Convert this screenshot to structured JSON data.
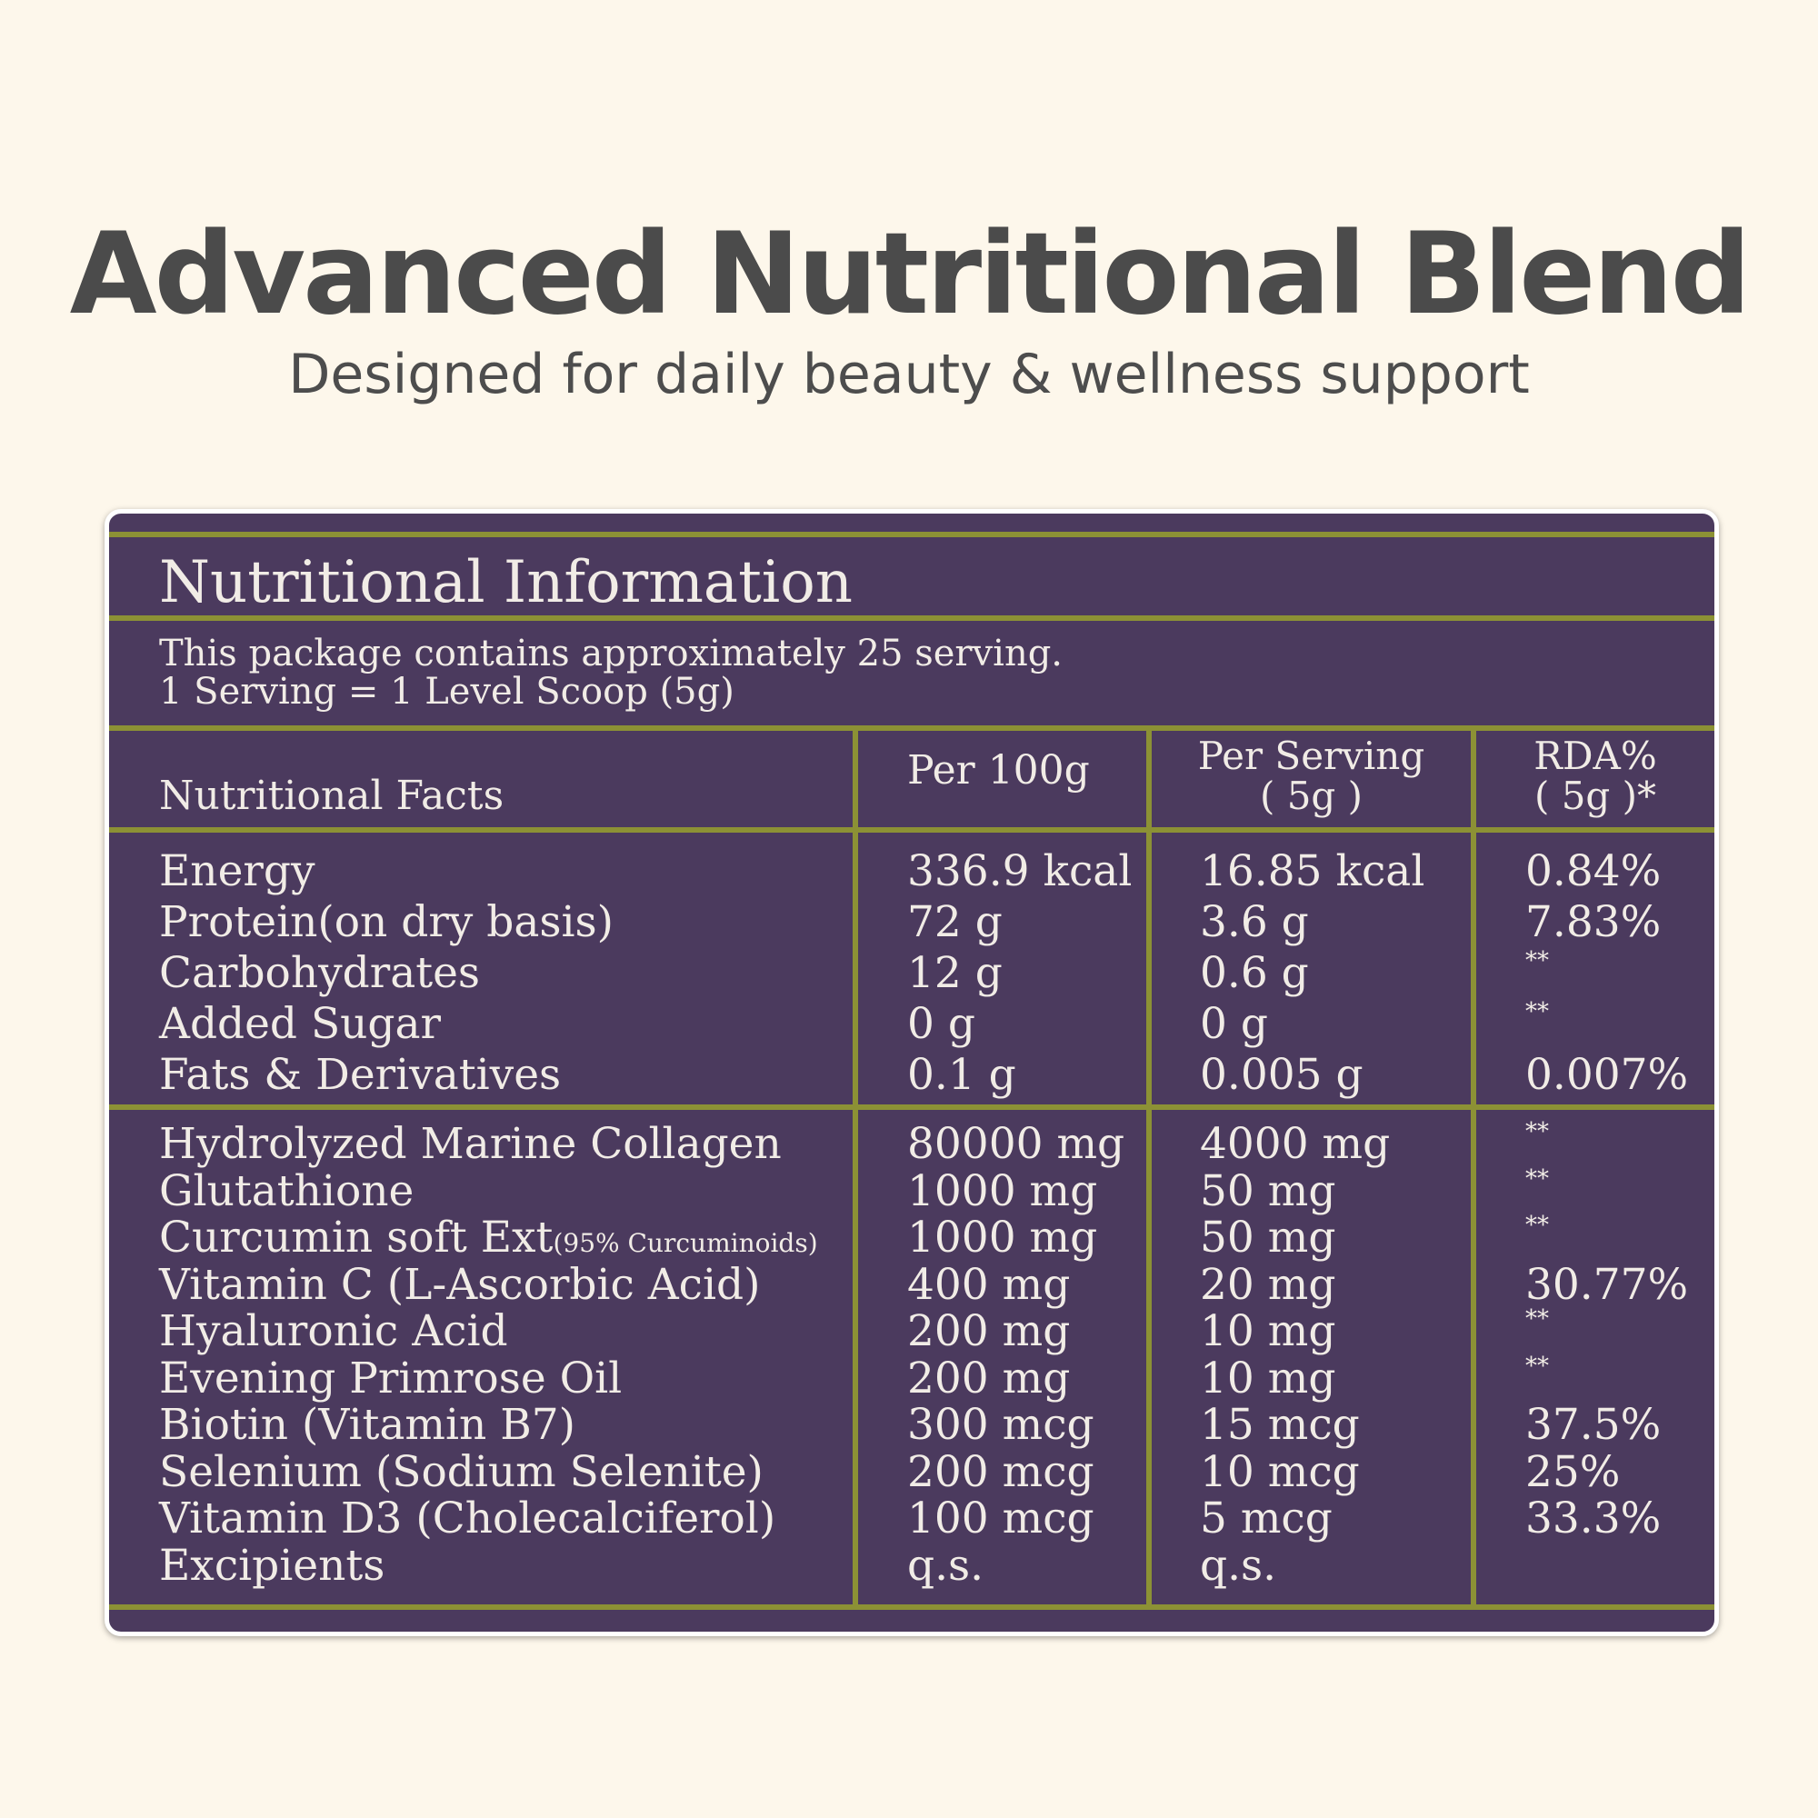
{
  "header": {
    "title": "Advanced Nutritional Blend",
    "subtitle": "Designed for daily beauty & wellness support"
  },
  "panel": {
    "title": "Nutritional Information",
    "line1": "This package contains approximately 25 serving.",
    "line2": "1 Serving = 1 Level Scoop (5g)",
    "columns": {
      "facts": "Nutritional Facts",
      "per100": "Per 100g",
      "serving_line1": "Per Serving",
      "serving_line2": "( 5g )",
      "rda_line1": "RDA%",
      "rda_line2": "( 5g )*"
    },
    "group1": [
      {
        "name": "Energy",
        "per100": "336.9 kcal",
        "serving": "16.85 kcal",
        "rda": "0.84%"
      },
      {
        "name": "Protein(on dry basis)",
        "per100": "72 g",
        "serving": "3.6 g",
        "rda": "7.83%"
      },
      {
        "name": "Carbohydrates",
        "per100": "12 g",
        "serving": "0.6 g",
        "rda": "**"
      },
      {
        "name": "Added Sugar",
        "per100": "0 g",
        "serving": "0 g",
        "rda": "**"
      },
      {
        "name": "Fats & Derivatives",
        "per100": "0.1 g",
        "serving": "0.005 g",
        "rda": "0.007%"
      }
    ],
    "group2": [
      {
        "name": "Hydrolyzed Marine Collagen",
        "per100": "80000 mg",
        "serving": "4000 mg",
        "rda": "**"
      },
      {
        "name": "Glutathione",
        "per100": "1000 mg",
        "serving": "50 mg",
        "rda": "**"
      },
      {
        "name": "Curcumin soft Ext",
        "note": "(95% Curcuminoids)",
        "per100": "1000 mg",
        "serving": "50 mg",
        "rda": "**"
      },
      {
        "name": "Vitamin C (L-Ascorbic Acid)",
        "per100": "400 mg",
        "serving": "20 mg",
        "rda": "30.77%"
      },
      {
        "name": "Hyaluronic Acid",
        "per100": "200 mg",
        "serving": "10 mg",
        "rda": "**"
      },
      {
        "name": "Evening Primrose Oil",
        "per100": "200 mg",
        "serving": "10 mg",
        "rda": "**"
      },
      {
        "name": "Biotin (Vitamin B7)",
        "per100": "300 mcg",
        "serving": "15 mcg",
        "rda": "37.5%"
      },
      {
        "name": "Selenium (Sodium Selenite)",
        "per100": "200 mcg",
        "serving": "10 mcg",
        "rda": "25%"
      },
      {
        "name": "Vitamin D3 (Cholecalciferol)",
        "per100": "100 mcg",
        "serving": "5 mcg",
        "rda": "33.3%"
      },
      {
        "name": "Excipients",
        "per100": "q.s.",
        "serving": "q.s.",
        "rda": ""
      }
    ]
  }
}
